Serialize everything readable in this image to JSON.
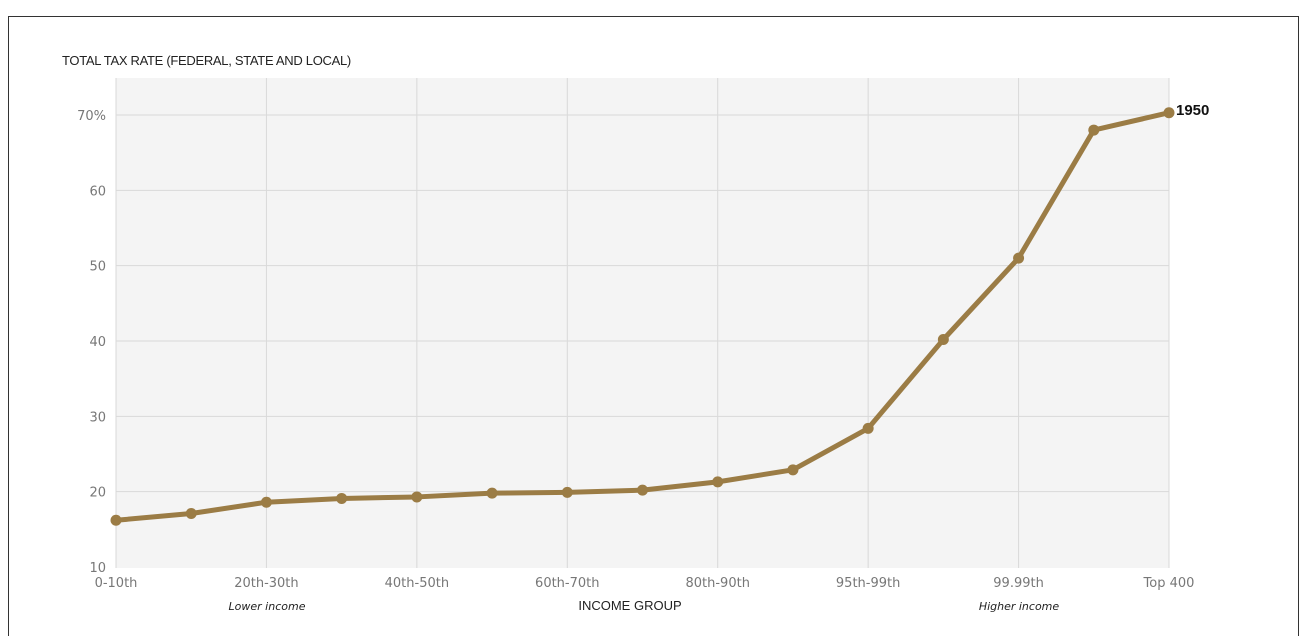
{
  "chart_data": {
    "type": "line",
    "ylabel": "TOTAL TAX RATE (FEDERAL, STATE AND LOCAL)",
    "xlabel": "INCOME GROUP",
    "ylim": [
      10,
      75
    ],
    "yticks": [
      10,
      20,
      30,
      40,
      50,
      60,
      70
    ],
    "ytick_labels": [
      "10",
      "20",
      "30",
      "40",
      "50",
      "60",
      "70%"
    ],
    "x_tick_labels": [
      "0-10th",
      "20th-30th",
      "40th-50th",
      "60th-70th",
      "80th-90th",
      "95th-99th",
      "99.99th",
      "Top 400"
    ],
    "annotations": {
      "lower": "Lower income",
      "higher": "Higher income"
    },
    "grid": true,
    "series": [
      {
        "name": "1950",
        "color": "#9b7c45",
        "values": [
          16.2,
          17.1,
          18.6,
          19.1,
          19.3,
          19.8,
          19.9,
          20.2,
          21.3,
          22.9,
          28.4,
          40.2,
          51.0,
          68.0,
          70.3
        ]
      }
    ]
  }
}
